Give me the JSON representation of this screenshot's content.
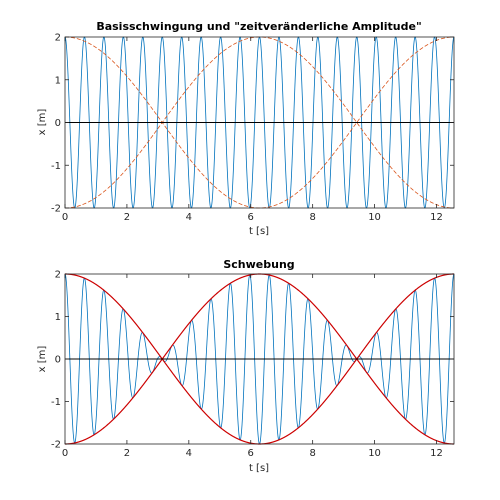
{
  "chart_data": [
    {
      "type": "line",
      "title": "Basisschwingung und \"zeitveränderliche Amplitude\"",
      "xlabel": "t [s]",
      "ylabel": "x [m]",
      "xlim": [
        0,
        12.566
      ],
      "ylim": [
        -2,
        2
      ],
      "xticks": [
        "0",
        "2",
        "4",
        "6",
        "8",
        "10",
        "12"
      ],
      "yticks": [
        "-2",
        "-1",
        "0",
        "1",
        "2"
      ],
      "grid": false,
      "series": [
        {
          "label": "2·cos(10·t)",
          "amplitude": 2,
          "frequency_rad_s": 10,
          "color": "#0072BD"
        },
        {
          "label": "±2·cos(0.5·t)",
          "amplitude": 2,
          "frequency_rad_s": 0.5,
          "style": "dashed",
          "color": "#D95319"
        }
      ],
      "zero_line": true
    },
    {
      "type": "line",
      "title": "Schwebung",
      "xlabel": "t [s]",
      "ylabel": "x [m]",
      "xlim": [
        0,
        12.566
      ],
      "ylim": [
        -2,
        2
      ],
      "xticks": [
        "0",
        "2",
        "4",
        "6",
        "8",
        "10",
        "12"
      ],
      "yticks": [
        "-2",
        "-1",
        "0",
        "1",
        "2"
      ],
      "grid": false,
      "series": [
        {
          "label": "2·cos(0.5·t)·cos(10·t)",
          "amplitude": 2,
          "envelope_frequency_rad_s": 0.5,
          "carrier_frequency_rad_s": 10,
          "color": "#0072BD"
        },
        {
          "label": "±2·cos(0.5·t)",
          "amplitude": 2,
          "frequency_rad_s": 0.5,
          "color": "#CC0000"
        }
      ],
      "zero_line": true
    }
  ]
}
